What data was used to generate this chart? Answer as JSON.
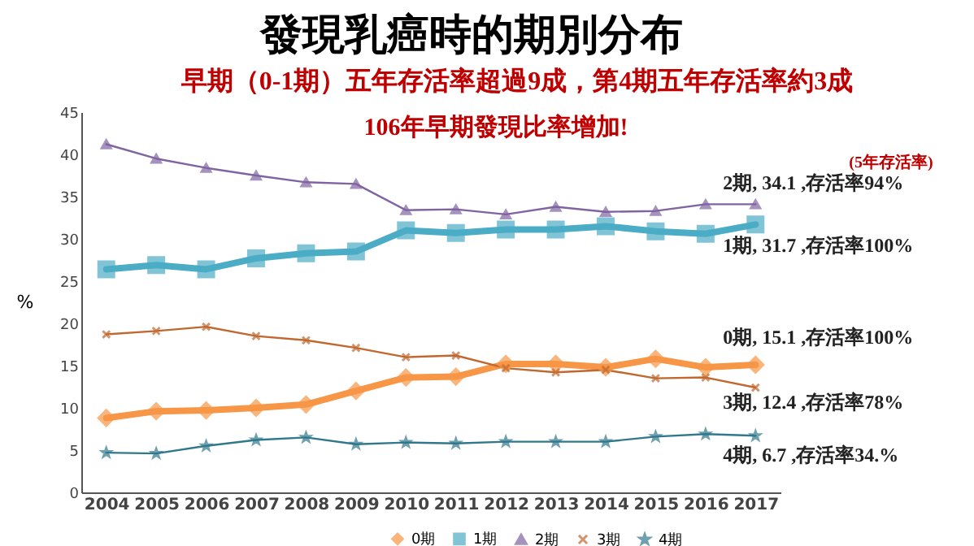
{
  "chart_data": {
    "type": "line",
    "title": "發現乳癌時的期別分布",
    "subtitle": "早期（0-1期）五年存活率超過9成，第4期五年存活率約3成",
    "ylabel": "%",
    "categories": [
      "2004",
      "2005",
      "2006",
      "2007",
      "2008",
      "2009",
      "2010",
      "2011",
      "2012",
      "2013",
      "2014",
      "2015",
      "2016",
      "2017"
    ],
    "series": [
      {
        "name": "0期",
        "color": "#f79646",
        "marker": "diamond",
        "values": [
          8.8,
          9.6,
          9.7,
          10.0,
          10.4,
          12.0,
          13.6,
          13.7,
          15.2,
          15.2,
          14.8,
          15.8,
          14.8,
          15.1
        ]
      },
      {
        "name": "1期",
        "color": "#4bacc6",
        "marker": "square",
        "values": [
          26.4,
          26.9,
          26.4,
          27.7,
          28.3,
          28.5,
          31.0,
          30.7,
          31.1,
          31.1,
          31.5,
          30.9,
          30.6,
          31.7
        ]
      },
      {
        "name": "2期",
        "color": "#8064a2",
        "marker": "triangle",
        "values": [
          41.2,
          39.5,
          38.4,
          37.5,
          36.7,
          36.5,
          33.4,
          33.5,
          32.9,
          33.8,
          33.2,
          33.3,
          34.1,
          34.1
        ]
      },
      {
        "name": "3期",
        "color": "#c0682f",
        "marker": "cross",
        "values": [
          18.7,
          19.1,
          19.6,
          18.5,
          18.0,
          17.1,
          16.0,
          16.2,
          14.7,
          14.2,
          14.5,
          13.5,
          13.6,
          12.4
        ]
      },
      {
        "name": "4期",
        "color": "#31788c",
        "marker": "star",
        "values": [
          4.7,
          4.6,
          5.5,
          6.2,
          6.5,
          5.7,
          5.9,
          5.8,
          6.0,
          6.0,
          6.0,
          6.6,
          6.9,
          6.7
        ]
      }
    ],
    "ylim": [
      0,
      45
    ],
    "yticks": [
      0,
      5,
      10,
      15,
      20,
      25,
      30,
      35,
      40,
      45
    ],
    "grid": false,
    "legend": "bottom",
    "annotations": [
      "106年早期發現比率增加!",
      "(5年存活率)",
      {
        "text": "2期, 34.1 ,存活率94%",
        "x": "2017",
        "y": 34.1
      },
      {
        "text": "1期, 31.7 ,存活率100%",
        "x": "2017",
        "y": 31.7
      },
      {
        "text": "0期, 15.1 ,存活率100%",
        "x": "2017",
        "y": 15.1
      },
      {
        "text": "3期, 12.4 ,存活率78%",
        "x": "2017",
        "y": 12.4
      },
      {
        "text": "4期, 6.7 ,存活率34.%",
        "x": "2017",
        "y": 6.7
      }
    ]
  }
}
